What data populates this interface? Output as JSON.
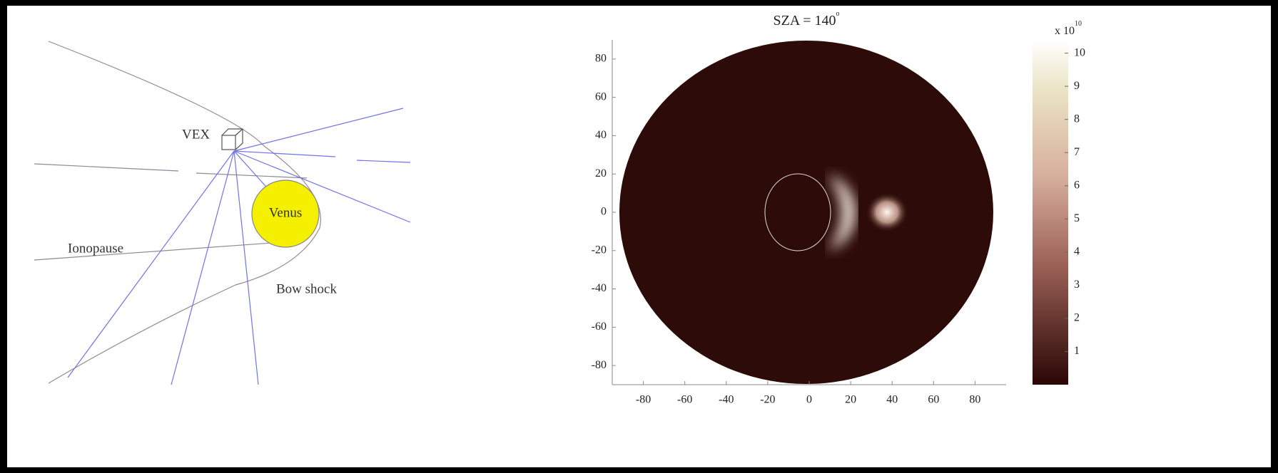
{
  "diagram": {
    "labels": {
      "spacecraft": "VEX",
      "planet": "Venus",
      "ionopause": "Ionopause",
      "bow_shock": "Bow shock"
    }
  },
  "chart_data": {
    "type": "image",
    "title": "SZA = 140",
    "title_superscript": "o",
    "xlim": [
      -95,
      95
    ],
    "xticks": [
      -80,
      -60,
      -40,
      -20,
      0,
      20,
      40,
      60,
      80
    ],
    "ylim": [
      -90,
      90
    ],
    "yticks": [
      80,
      60,
      40,
      20,
      0,
      -20,
      -40,
      -60,
      -80
    ],
    "colorbar": {
      "lim": [
        0,
        10.4
      ],
      "ticks": [
        1,
        2,
        3,
        4,
        5,
        6,
        7,
        8,
        9,
        10
      ],
      "scale_label": "x 10",
      "scale_exponent": "10"
    }
  }
}
